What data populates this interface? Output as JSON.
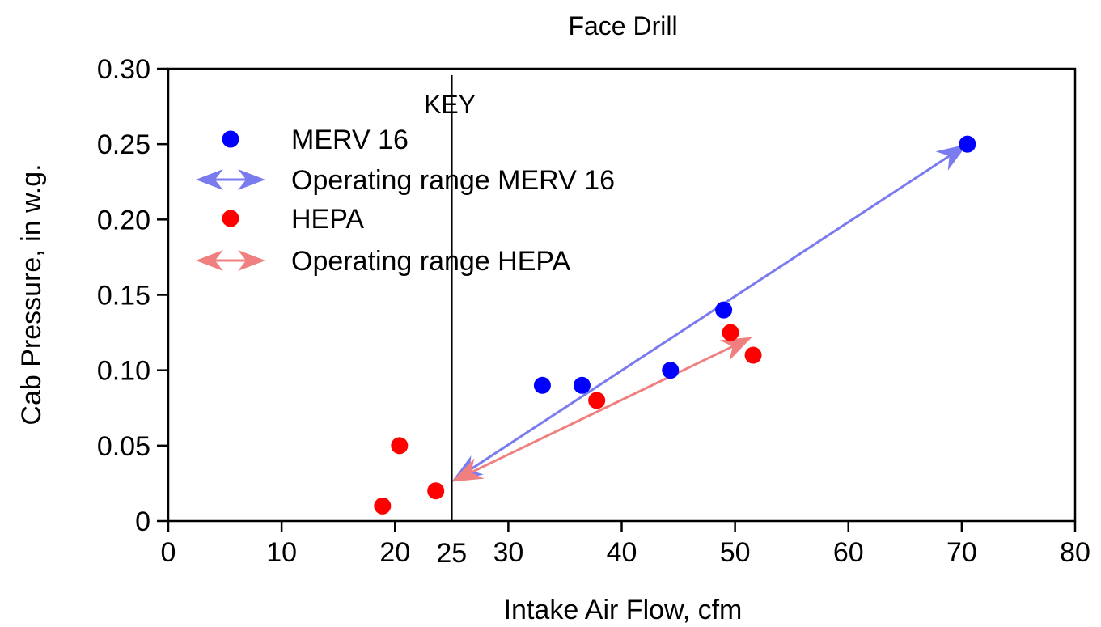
{
  "chart_data": {
    "type": "scatter",
    "title": "Face Drill",
    "xlabel": "Intake Air Flow, cfm",
    "ylabel": "Cab Pressure, in w.g.",
    "xlim": [
      0,
      80
    ],
    "ylim": [
      0,
      0.3
    ],
    "x_ticks": [
      0,
      10,
      20,
      30,
      40,
      50,
      60,
      70,
      80
    ],
    "x_tick_labels": [
      "0",
      "10",
      "20",
      "30",
      "40",
      "50",
      "60",
      "70",
      "80"
    ],
    "y_ticks": [
      0,
      0.05,
      0.1,
      0.15,
      0.2,
      0.25,
      0.3
    ],
    "y_tick_labels": [
      "0",
      "0.05",
      "0.10",
      "0.15",
      "0.20",
      "0.25",
      "0.30"
    ],
    "grid": false,
    "legend": {
      "title": "KEY",
      "placement": "top-left",
      "entries": [
        {
          "label": "MERV 16",
          "kind": "marker",
          "color": "#0000ff"
        },
        {
          "label": "Operating range MERV 16",
          "kind": "arrow",
          "color": "#7b7bf0"
        },
        {
          "label": "HEPA",
          "kind": "marker",
          "color": "#ff0000"
        },
        {
          "label": "Operating range HEPA",
          "kind": "arrow",
          "color": "#f08080"
        }
      ]
    },
    "series": [
      {
        "name": "MERV 16",
        "color": "#0000ff",
        "x": [
          33.0,
          36.5,
          44.3,
          49.0,
          70.5
        ],
        "y": [
          0.09,
          0.09,
          0.1,
          0.14,
          0.25
        ]
      },
      {
        "name": "HEPA",
        "color": "#ff0000",
        "x": [
          18.9,
          20.4,
          23.6,
          37.8,
          49.6,
          51.6
        ],
        "y": [
          0.01,
          0.05,
          0.02,
          0.08,
          0.125,
          0.11
        ]
      }
    ],
    "ranges": [
      {
        "series": "MERV 16",
        "color": "#7b7bf0",
        "from": [
          25,
          0.026
        ],
        "to": [
          70.5,
          0.25
        ]
      },
      {
        "series": "HEPA",
        "color": "#f08080",
        "from": [
          25,
          0.026
        ],
        "to": [
          51.5,
          0.122
        ]
      }
    ],
    "vline": {
      "x": 25,
      "label": "25"
    }
  }
}
